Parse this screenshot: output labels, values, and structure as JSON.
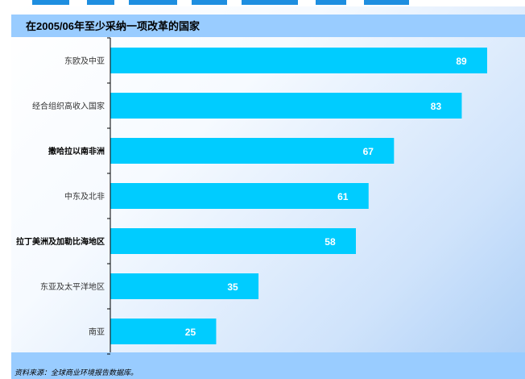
{
  "colors": {
    "bar": "#00ccff",
    "value_label": "#ffffff",
    "header_band": "#99ccff",
    "axis": "#000000"
  },
  "chart": {
    "title": "在2005/06年至少采纳一项改革的国家",
    "source": "资料来源：全球商业环境报告数据库。"
  },
  "chart_data": {
    "type": "bar",
    "orientation": "horizontal",
    "title": "在2005/06年至少采纳一项改革的国家",
    "xlabel": "",
    "ylabel": "",
    "xlim": [
      0,
      100
    ],
    "grid": false,
    "legend": "none",
    "categories": [
      "东欧及中亚",
      "经合组织高收入国家",
      "撒哈拉以南非洲",
      "中东及北非",
      "拉丁美洲及加勒比海地区",
      "东亚及太平洋地区",
      "南亚"
    ],
    "values": [
      89,
      83,
      67,
      61,
      58,
      35,
      25
    ]
  }
}
